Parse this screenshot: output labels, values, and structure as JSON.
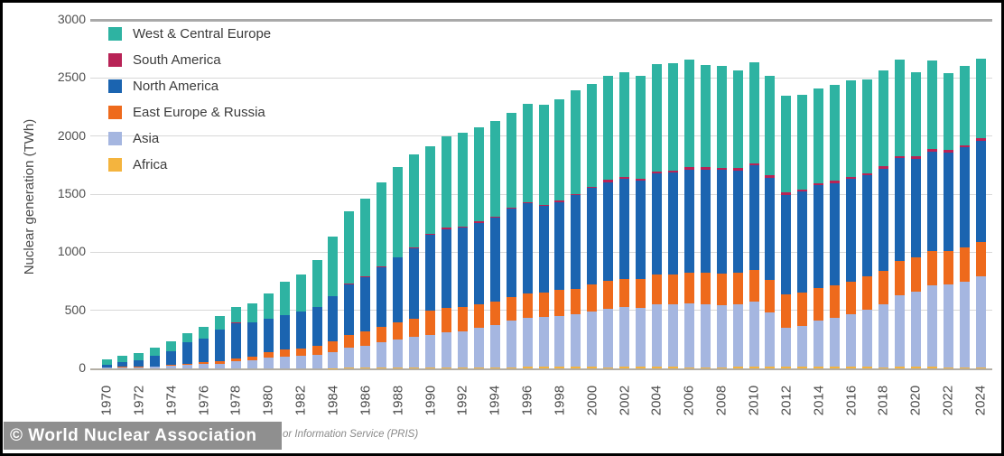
{
  "y_axis": {
    "label": "Nuclear generation (TWh)",
    "ticks": [
      0,
      500,
      1000,
      1500,
      2000,
      2500,
      3000
    ]
  },
  "legend": {
    "items": [
      {
        "label": "West & Central Europe",
        "color": "#2eb3a2"
      },
      {
        "label": "South America",
        "color": "#b82356"
      },
      {
        "label": "North America",
        "color": "#1b64b0"
      },
      {
        "label": "East Europe & Russia",
        "color": "#ee6a1c"
      },
      {
        "label": "Asia",
        "color": "#a5b6e0"
      },
      {
        "label": "Africa",
        "color": "#f4b43e"
      }
    ]
  },
  "footer": {
    "watermark": "© World Nuclear Association",
    "source_fragment": "or Information Service (PRIS)"
  },
  "chart_data": {
    "type": "bar",
    "stacked": true,
    "title": "",
    "xlabel": "",
    "ylabel": "Nuclear generation (TWh)",
    "ylim": [
      0,
      3000
    ],
    "grid": true,
    "legend_position": "top-left",
    "x_tick_interval": 2,
    "years": [
      1970,
      1971,
      1972,
      1973,
      1974,
      1975,
      1976,
      1977,
      1978,
      1979,
      1980,
      1981,
      1982,
      1983,
      1984,
      1985,
      1986,
      1987,
      1988,
      1989,
      1990,
      1991,
      1992,
      1993,
      1994,
      1995,
      1996,
      1997,
      1998,
      1999,
      2000,
      2001,
      2002,
      2003,
      2004,
      2005,
      2006,
      2007,
      2008,
      2009,
      2010,
      2011,
      2012,
      2013,
      2014,
      2015,
      2016,
      2017,
      2018,
      2019,
      2020,
      2021,
      2022,
      2023,
      2024
    ],
    "series": [
      {
        "name": "Africa",
        "color": "#f4b43e",
        "values": [
          0,
          0,
          0,
          0,
          0,
          0,
          0,
          0,
          0,
          0,
          0,
          0,
          0,
          0,
          4,
          6,
          8,
          7,
          8,
          9,
          8,
          9,
          9,
          7,
          10,
          11,
          12,
          12,
          13,
          13,
          13,
          11,
          12,
          13,
          14,
          12,
          10,
          11,
          11,
          12,
          12,
          13,
          13,
          14,
          15,
          12,
          15,
          15,
          11,
          13,
          12,
          12,
          10,
          8,
          10
        ]
      },
      {
        "name": "Asia",
        "color": "#a5b6e0",
        "values": [
          5,
          8,
          10,
          12,
          20,
          28,
          36,
          42,
          59,
          70,
          92,
          100,
          110,
          120,
          140,
          170,
          190,
          215,
          240,
          260,
          280,
          300,
          310,
          340,
          360,
          400,
          420,
          430,
          440,
          450,
          480,
          500,
          515,
          510,
          535,
          540,
          550,
          540,
          535,
          540,
          560,
          470,
          340,
          355,
          395,
          425,
          455,
          490,
          540,
          620,
          650,
          700,
          710,
          740,
          780
        ]
      },
      {
        "name": "East Europe & Russia",
        "color": "#ee6a1c",
        "values": [
          4,
          4,
          5,
          7,
          9,
          13,
          17,
          22,
          28,
          35,
          50,
          60,
          65,
          75,
          90,
          110,
          120,
          135,
          145,
          155,
          211,
          212,
          208,
          208,
          202,
          205,
          210,
          215,
          220,
          225,
          230,
          240,
          245,
          250,
          260,
          255,
          265,
          270,
          272,
          273,
          276,
          280,
          282,
          283,
          285,
          280,
          280,
          285,
          290,
          295,
          295,
          297,
          290,
          293,
          300
        ]
      },
      {
        "name": "North America",
        "color": "#1b64b0",
        "values": [
          23,
          40,
          57,
          87,
          117,
          185,
          203,
          267,
          304,
          289,
          287,
          300,
          312,
          330,
          385,
          440,
          470,
          515,
          560,
          610,
          649,
          680,
          687,
          700,
          728,
          760,
          780,
          740,
          760,
          805,
          830,
          850,
          860,
          840,
          870,
          880,
          885,
          890,
          890,
          880,
          899,
          880,
          860,
          870,
          880,
          880,
          880,
          870,
          880,
          880,
          850,
          860,
          850,
          860,
          870
        ]
      },
      {
        "name": "South America",
        "color": "#b82356",
        "values": [
          0,
          0,
          0,
          0,
          1,
          2,
          2,
          2,
          2,
          2,
          2,
          2,
          2,
          2,
          3,
          8,
          8,
          8,
          7,
          7,
          9,
          9,
          9,
          9,
          9,
          9,
          10,
          10,
          10,
          10,
          11,
          20,
          19,
          20,
          19,
          17,
          20,
          19,
          20,
          21,
          21,
          22,
          21,
          21,
          20,
          21,
          21,
          21,
          21,
          22,
          19,
          19,
          19,
          20,
          20
        ]
      },
      {
        "name": "West & Central Europe",
        "color": "#2eb3a2",
        "values": [
          47,
          54,
          64,
          74,
          83,
          76,
          98,
          118,
          139,
          163,
          213,
          287,
          316,
          406,
          510,
          621,
          662,
          719,
          775,
          802,
          752,
          787,
          805,
          815,
          821,
          811,
          848,
          864,
          870,
          890,
          886,
          896,
          902,
          885,
          918,
          922,
          930,
          878,
          873,
          842,
          868,
          853,
          830,
          816,
          815,
          823,
          826,
          806,
          821,
          827,
          727,
          765,
          666,
          681,
          687
        ]
      }
    ]
  }
}
